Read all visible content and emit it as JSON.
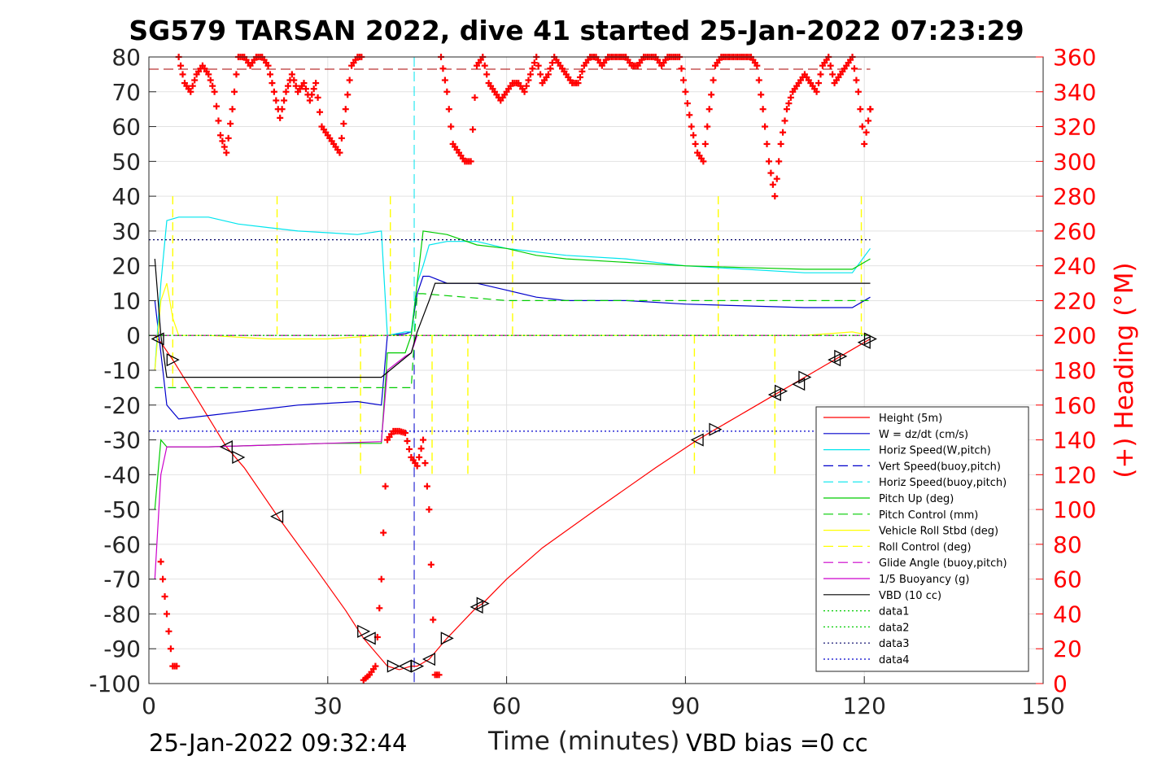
{
  "chart_data": {
    "type": "line",
    "title": "SG579 TARSAN 2022, dive 41 started 25-Jan-2022 07:23:29",
    "xlabel": "Time (minutes)",
    "ylabel": "",
    "y2label": "(+) Heading (°M)",
    "xlim": [
      0,
      150
    ],
    "ylim": [
      -100,
      80
    ],
    "y2lim": [
      0,
      360
    ],
    "xticks": [
      "0",
      "30",
      "60",
      "90",
      "120",
      "150"
    ],
    "yticks": [
      "80",
      "70",
      "60",
      "50",
      "40",
      "30",
      "20",
      "10",
      "0",
      "-10",
      "-20",
      "-30",
      "-40",
      "-50",
      "-60",
      "-70",
      "-80",
      "-90",
      "-100"
    ],
    "y2ticks": [
      "360",
      "340",
      "320",
      "300",
      "280",
      "260",
      "240",
      "220",
      "200",
      "180",
      "160",
      "140",
      "120",
      "100",
      "80",
      "60",
      "40",
      "20",
      "0"
    ],
    "grid": true,
    "legend_position": "lower-right",
    "footer_left": "25-Jan-2022 09:32:44",
    "footer_right": "VBD bias =0 cc",
    "colors": {
      "height": "#ff0000",
      "w": "#0000cc",
      "hspeed": "#00e5ee",
      "pitch": "#00cc00",
      "roll": "#ffff00",
      "glide": "#cc00cc",
      "buoy": "#cc00cc",
      "vbd": "#000000",
      "heading": "#ff0000",
      "darkred": "#aa0000"
    },
    "series": [
      {
        "name": "Height (5m)",
        "style": "solid",
        "color": "#ff0000",
        "x": [
          1,
          2,
          4,
          8,
          13,
          16,
          22,
          28,
          33,
          36,
          40,
          42,
          44,
          45,
          47,
          50,
          55,
          56,
          60,
          66,
          75,
          85,
          92,
          95,
          100,
          106,
          110,
          115,
          120,
          121
        ],
        "y": [
          0,
          -2,
          -7,
          -18,
          -32,
          -38,
          -53,
          -67,
          -79,
          -87,
          -95,
          -96,
          -95,
          -95,
          -93,
          -87,
          -78,
          -77,
          -70,
          -61,
          -50,
          -38,
          -30,
          -27,
          -22,
          -16,
          -12,
          -7,
          -2,
          -1
        ]
      },
      {
        "name": "W = dz/dt (cm/s)",
        "style": "solid",
        "color": "#0000cc",
        "x": [
          1,
          2,
          3,
          5,
          10,
          15,
          20,
          25,
          30,
          35,
          39,
          40,
          43,
          44,
          45,
          46,
          47,
          50,
          55,
          60,
          65,
          70,
          80,
          90,
          100,
          110,
          118,
          121
        ],
        "y": [
          10,
          -5,
          -20,
          -24,
          -23,
          -22,
          -21,
          -20,
          -19.5,
          -19,
          -20,
          0,
          0.5,
          1,
          12,
          17,
          17,
          15,
          15,
          13,
          11,
          10,
          10,
          9,
          8.5,
          8,
          8,
          11
        ]
      },
      {
        "name": "Horiz Speed(W,pitch)",
        "style": "solid",
        "color": "#00e5ee",
        "x": [
          1,
          2,
          3,
          5,
          10,
          15,
          20,
          25,
          30,
          35,
          39,
          40,
          43,
          44,
          45,
          46,
          47,
          50,
          55,
          60,
          70,
          80,
          90,
          100,
          110,
          118,
          121
        ],
        "y": [
          -10,
          15,
          33,
          34,
          34,
          32,
          31,
          30,
          29.5,
          29,
          30,
          0,
          1,
          1,
          15,
          20,
          26,
          27,
          27,
          25,
          23,
          22,
          20,
          19,
          18,
          18,
          25
        ]
      },
      {
        "name": "Vert Speed(buoy,pitch)",
        "style": "dash",
        "color": "#0000cc",
        "x": [
          0,
          121
        ],
        "y": [
          0,
          0
        ]
      },
      {
        "name": "Horiz Speed(buoy,pitch)",
        "style": "dash",
        "color": "#00e5ee",
        "x": [
          0,
          121
        ],
        "y": [
          0,
          0
        ]
      },
      {
        "name": "Pitch Up (deg)",
        "style": "solid",
        "color": "#00cc00",
        "x": [
          1,
          2,
          3,
          5,
          10,
          20,
          30,
          39,
          40,
          43,
          44,
          45,
          46,
          50,
          55,
          60,
          65,
          70,
          80,
          90,
          100,
          110,
          118,
          121
        ],
        "y": [
          -50,
          -30,
          -32,
          -32,
          -32,
          -31.5,
          -31,
          -31,
          -5,
          -5,
          0,
          15,
          30,
          29,
          26,
          25,
          23,
          22,
          21,
          20,
          19.5,
          19,
          19,
          22
        ]
      },
      {
        "name": "Pitch Control (mm)",
        "style": "dash",
        "color": "#00cc00",
        "x": [
          1,
          3,
          39,
          40,
          44,
          45,
          46,
          60,
          90,
          121
        ],
        "y": [
          -15,
          -15,
          -15,
          -15,
          -15,
          12,
          12,
          10,
          10,
          10
        ]
      },
      {
        "name": "Vehicle Roll Stbd (deg)",
        "style": "solid",
        "color": "#ffff00",
        "x": [
          1,
          2,
          3,
          4,
          5,
          10,
          20,
          30,
          39,
          40,
          44,
          45,
          50,
          60,
          80,
          100,
          110,
          118,
          121
        ],
        "y": [
          -10,
          10,
          15,
          5,
          0,
          0,
          -1,
          -1,
          0,
          0,
          0,
          0,
          0,
          0,
          0,
          0,
          0,
          1,
          0
        ]
      },
      {
        "name": "Roll Control (deg)",
        "style": "dash",
        "color": "#ffff00",
        "x": [
          0,
          121
        ],
        "y": [
          0,
          0
        ]
      },
      {
        "name": "Glide Angle (buoy,pitch)",
        "style": "dash",
        "color": "#cc00cc",
        "x": [
          0,
          121
        ],
        "y": [
          0,
          0
        ]
      },
      {
        "name": "1/5 Buoyancy (g)",
        "style": "solid",
        "color": "#cc00cc",
        "x": [
          1,
          2,
          3,
          5,
          10,
          20,
          30,
          39,
          40,
          43,
          44,
          45
        ],
        "y": [
          -70,
          -40,
          -32,
          -32,
          -32,
          -31.5,
          -31,
          -30.5,
          -10,
          -6,
          -5,
          0
        ]
      },
      {
        "name": "VBD (10 cc)",
        "style": "solid",
        "color": "#000000",
        "x": [
          1,
          2,
          3,
          10,
          20,
          30,
          38,
          39,
          44,
          45,
          47,
          48,
          121
        ],
        "y": [
          22,
          0,
          -12,
          -12,
          -12,
          -12,
          -12,
          -12,
          -5,
          1,
          10,
          15,
          15
        ]
      },
      {
        "name": "data1",
        "style": "dot",
        "color": "#00cc00",
        "x": [
          0,
          121
        ],
        "y": [
          0,
          0
        ]
      },
      {
        "name": "data2",
        "style": "dot",
        "color": "#00cc00",
        "x": [
          0,
          121
        ],
        "y": [
          0,
          0
        ]
      },
      {
        "name": "data3",
        "style": "dot",
        "color": "#000066",
        "x": [
          0,
          121
        ],
        "y": [
          27.5,
          27.5
        ]
      },
      {
        "name": "data4",
        "style": "dot",
        "color": "#0000cc",
        "x": [
          0,
          121
        ],
        "y": [
          -27.5,
          -27.5
        ]
      }
    ],
    "heading": {
      "axis": "right",
      "marker": "+",
      "color": "#ff0000",
      "x": [
        2,
        3,
        4,
        5,
        6,
        7,
        8,
        9,
        10,
        11,
        12,
        13,
        14,
        15,
        16,
        17,
        18,
        19,
        20,
        21,
        22,
        23,
        24,
        25,
        26,
        27,
        28,
        29,
        30,
        31,
        32,
        33,
        34,
        35,
        36,
        37,
        38,
        39,
        40,
        41,
        42,
        43,
        44,
        45,
        46,
        47,
        48,
        49,
        50,
        51,
        52,
        53,
        54,
        55,
        56,
        57,
        58,
        59,
        60,
        61,
        62,
        63,
        64,
        65,
        66,
        67,
        68,
        69,
        70,
        71,
        72,
        73,
        74,
        75,
        76,
        77,
        78,
        79,
        80,
        81,
        82,
        83,
        84,
        85,
        86,
        87,
        88,
        89,
        90,
        91,
        92,
        93,
        94,
        95,
        96,
        97,
        98,
        99,
        100,
        101,
        102,
        103,
        104,
        105,
        106,
        107,
        108,
        109,
        110,
        111,
        112,
        113,
        114,
        115,
        116,
        117,
        118,
        119,
        120,
        121
      ],
      "y": [
        70,
        40,
        10,
        360,
        345,
        340,
        350,
        355,
        350,
        340,
        315,
        305,
        330,
        360,
        360,
        355,
        360,
        360,
        355,
        340,
        325,
        340,
        350,
        340,
        345,
        335,
        345,
        320,
        315,
        310,
        305,
        330,
        355,
        360,
        2,
        5,
        10,
        60,
        140,
        145,
        145,
        144,
        130,
        125,
        140,
        100,
        5,
        360,
        340,
        310,
        305,
        300,
        300,
        355,
        360,
        345,
        340,
        335,
        340,
        345,
        345,
        340,
        350,
        360,
        345,
        350,
        360,
        355,
        350,
        345,
        345,
        355,
        360,
        360,
        355,
        360,
        360,
        360,
        360,
        355,
        355,
        360,
        360,
        360,
        355,
        360,
        360,
        360,
        340,
        320,
        305,
        300,
        330,
        355,
        360,
        360,
        360,
        360,
        360,
        360,
        355,
        330,
        300,
        280,
        310,
        330,
        340,
        345,
        350,
        345,
        340,
        355,
        360,
        345,
        350,
        355,
        360,
        340,
        310,
        330
      ]
    },
    "markers": {
      "type": "triangles",
      "x": [
        1.5,
        4,
        13,
        15,
        21.5,
        36,
        37,
        41,
        43,
        45,
        47,
        50,
        55,
        56,
        92,
        95,
        105,
        106,
        109,
        110,
        115,
        116,
        120,
        121
      ],
      "y": [
        -1,
        -7,
        -32,
        -35,
        -52,
        -85,
        -87,
        -95,
        -95,
        -95,
        -93,
        -87,
        -78,
        -77,
        -30,
        -27,
        -17,
        -16,
        -14,
        -12,
        -7,
        -6,
        -2,
        -1
      ]
    },
    "reference_lines": {
      "heading_dashed_right_axis": 353,
      "vertical_dash_x": 44.5
    }
  }
}
